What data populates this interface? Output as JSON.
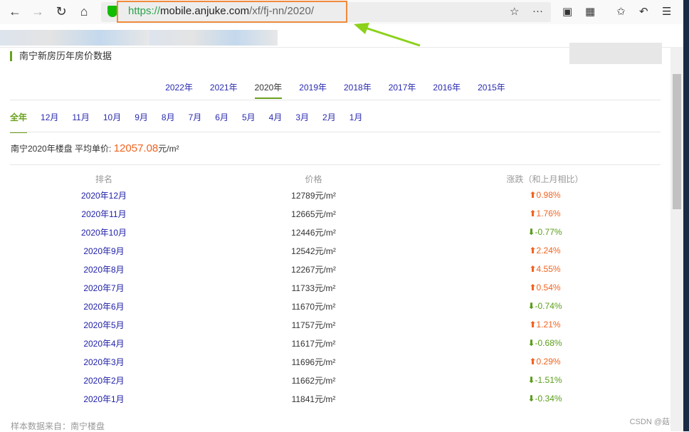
{
  "browser": {
    "url_scheme": "https://",
    "url_host": "mobile.anjuke.com",
    "url_path": "/xf/fj-nn/2020/"
  },
  "page": {
    "title": "南宁新房历年房价数据",
    "years": [
      "2022年",
      "2021年",
      "2020年",
      "2019年",
      "2018年",
      "2017年",
      "2016年",
      "2015年"
    ],
    "active_year": "2020年",
    "months": [
      "全年",
      "12月",
      "11月",
      "10月",
      "9月",
      "8月",
      "7月",
      "6月",
      "5月",
      "4月",
      "3月",
      "2月",
      "1月"
    ],
    "avg_label": "南宁2020年楼盘  平均单价: ",
    "avg_value": "12057.08",
    "avg_unit": "元/m²",
    "headers": [
      "排名",
      "价格",
      "涨跌（和上月相比）"
    ],
    "rows": [
      {
        "month": "2020年12月",
        "price": "12789元/m²",
        "change": "0.98%",
        "dir": "up"
      },
      {
        "month": "2020年11月",
        "price": "12665元/m²",
        "change": "1.76%",
        "dir": "up"
      },
      {
        "month": "2020年10月",
        "price": "12446元/m²",
        "change": "-0.77%",
        "dir": "down"
      },
      {
        "month": "2020年9月",
        "price": "12542元/m²",
        "change": "2.24%",
        "dir": "up"
      },
      {
        "month": "2020年8月",
        "price": "12267元/m²",
        "change": "4.55%",
        "dir": "up"
      },
      {
        "month": "2020年7月",
        "price": "11733元/m²",
        "change": "0.54%",
        "dir": "up"
      },
      {
        "month": "2020年6月",
        "price": "11670元/m²",
        "change": "-0.74%",
        "dir": "down"
      },
      {
        "month": "2020年5月",
        "price": "11757元/m²",
        "change": "1.21%",
        "dir": "up"
      },
      {
        "month": "2020年4月",
        "price": "11617元/m²",
        "change": "-0.68%",
        "dir": "down"
      },
      {
        "month": "2020年3月",
        "price": "11696元/m²",
        "change": "0.29%",
        "dir": "up"
      },
      {
        "month": "2020年2月",
        "price": "11662元/m²",
        "change": "-1.51%",
        "dir": "down"
      },
      {
        "month": "2020年1月",
        "price": "11841元/m²",
        "change": "-0.34%",
        "dir": "down"
      }
    ],
    "footer": "样本数据来自：南宁楼盘"
  },
  "watermark": "CSDN @菇毒"
}
